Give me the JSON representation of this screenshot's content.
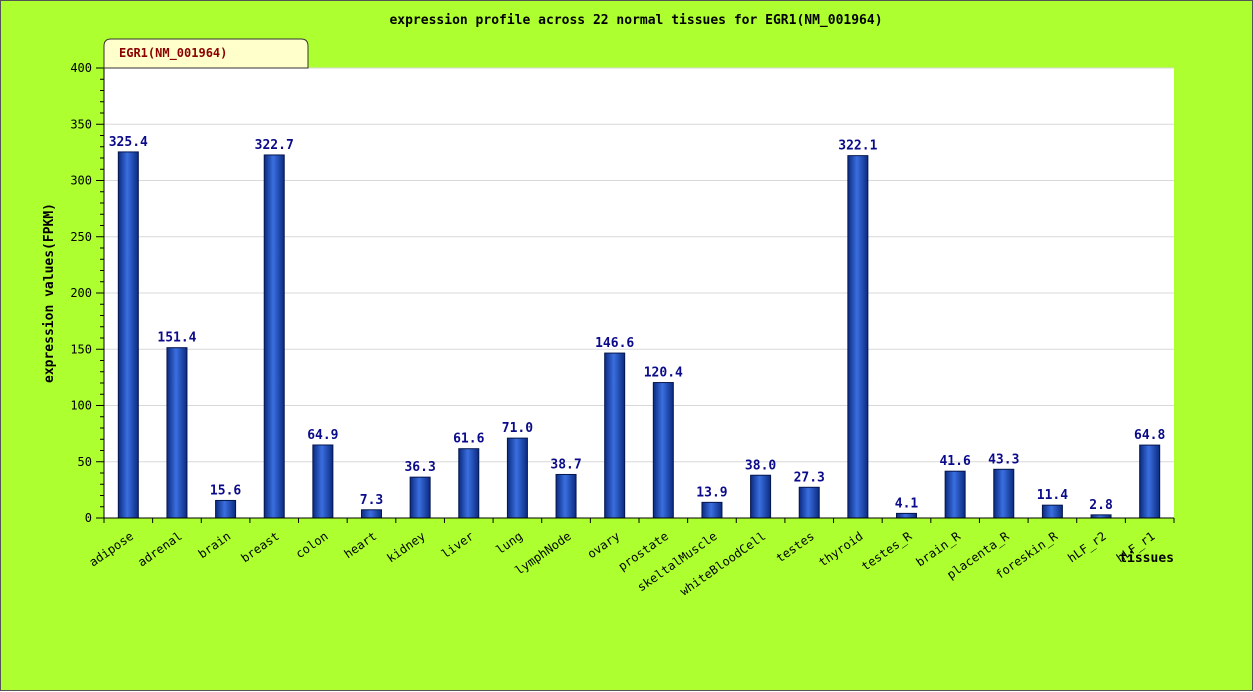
{
  "chart_data": {
    "type": "bar",
    "title": "expression profile across 22 normal tissues for EGR1(NM_001964)",
    "legend_label": "EGR1(NM_001964)",
    "xlabel": "tissues",
    "ylabel": "expression values(FPKM)",
    "ylim": [
      0,
      400
    ],
    "yticks": [
      0,
      50,
      100,
      150,
      200,
      250,
      300,
      350,
      400
    ],
    "grid": true,
    "legend_position": "top-left",
    "categories": [
      "adipose",
      "adrenal",
      "brain",
      "breast",
      "colon",
      "heart",
      "kidney",
      "liver",
      "lung",
      "lymphNode",
      "ovary",
      "prostate",
      "skeltalMuscle",
      "whiteBloodCell",
      "testes",
      "thyroid",
      "testes_R",
      "brain_R",
      "placenta_R",
      "foreskin_R",
      "hLF_r2",
      "hLF_r1"
    ],
    "values": [
      325.4,
      151.4,
      15.6,
      322.7,
      64.9,
      7.3,
      36.3,
      61.6,
      71.0,
      38.7,
      146.6,
      120.4,
      13.9,
      38.0,
      27.3,
      322.1,
      4.1,
      41.6,
      43.3,
      11.4,
      2.8,
      64.8
    ],
    "value_labels": [
      "325.4",
      "151.4",
      "15.6",
      "322.7",
      "64.9",
      "7.3",
      "36.3",
      "61.6",
      "71.0",
      "38.7",
      "146.6",
      "120.4",
      "13.9",
      "38.0",
      "27.3",
      "322.1",
      "4.1",
      "41.6",
      "43.3",
      "11.4",
      "2.8",
      "64.8"
    ],
    "colors": {
      "background": "#adff2f",
      "plot": "#ffffff",
      "bar": "#1f4fbf",
      "value_text": "#0a0a8a",
      "legend_fill": "#ffffcc",
      "legend_text": "#8b0000"
    }
  }
}
